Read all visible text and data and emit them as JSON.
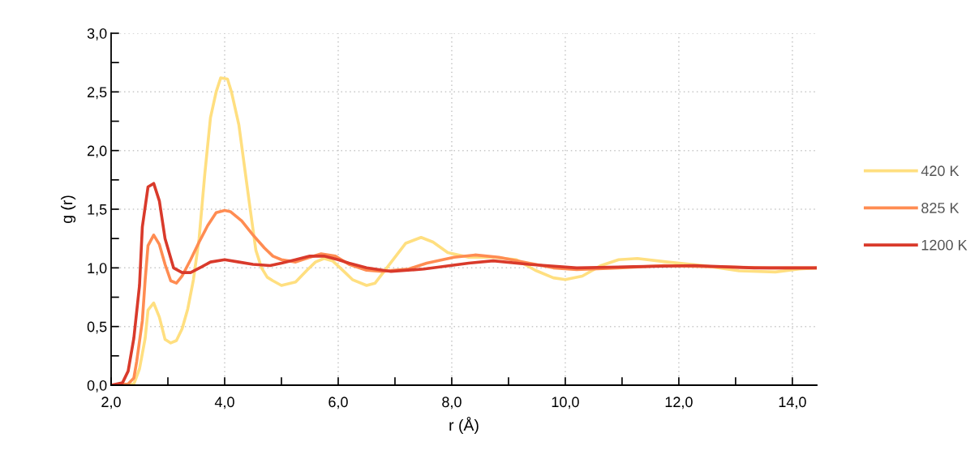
{
  "chart_data": {
    "type": "line",
    "xlabel": "r (Å)",
    "ylabel": "g (r)",
    "xlim": [
      2.0,
      14.43
    ],
    "ylim": [
      0,
      3.0
    ],
    "xticks": [
      {
        "value": 2,
        "label": "2,0"
      },
      {
        "value": 3,
        "label": null
      },
      {
        "value": 4,
        "label": "4,0"
      },
      {
        "value": 5,
        "label": null
      },
      {
        "value": 6,
        "label": "6,0"
      },
      {
        "value": 7,
        "label": null
      },
      {
        "value": 8,
        "label": "8,0"
      },
      {
        "value": 9,
        "label": null
      },
      {
        "value": 10,
        "label": "10,0"
      },
      {
        "value": 11,
        "label": null
      },
      {
        "value": 12,
        "label": "12,0"
      },
      {
        "value": 13,
        "label": null
      },
      {
        "value": 14,
        "label": "14,0"
      }
    ],
    "yticks": [
      {
        "value": 0,
        "label": "0,0"
      },
      {
        "value": 0.25,
        "label": null
      },
      {
        "value": 0.5,
        "label": "0,5"
      },
      {
        "value": 0.75,
        "label": null
      },
      {
        "value": 1.0,
        "label": "1,0"
      },
      {
        "value": 1.25,
        "label": null
      },
      {
        "value": 1.5,
        "label": "1,5"
      },
      {
        "value": 1.75,
        "label": null
      },
      {
        "value": 2.0,
        "label": "2,0"
      },
      {
        "value": 2.25,
        "label": null
      },
      {
        "value": 2.5,
        "label": "2,5"
      },
      {
        "value": 2.75,
        "label": null
      },
      {
        "value": 3.0,
        "label": "3,0"
      }
    ],
    "grid": true,
    "legend": "right",
    "marker": "none",
    "line_style": "solid",
    "series": [
      {
        "name": "420 K",
        "color": "#ffdf80",
        "x": [
          2.0,
          2.4,
          2.5,
          2.6,
          2.65,
          2.75,
          2.85,
          2.95,
          3.05,
          3.15,
          3.25,
          3.35,
          3.45,
          3.55,
          3.65,
          3.75,
          3.85,
          3.93,
          4.05,
          4.12,
          4.25,
          4.35,
          4.45,
          4.55,
          4.65,
          4.75,
          4.85,
          5.0,
          5.25,
          5.45,
          5.6,
          5.75,
          5.9,
          6.1,
          6.25,
          6.5,
          6.65,
          7.19,
          7.46,
          7.67,
          7.93,
          8.3,
          8.73,
          9.14,
          9.47,
          9.79,
          10.0,
          10.3,
          10.63,
          10.94,
          11.27,
          11.8,
          12.43,
          13.06,
          13.7,
          14.12,
          14.43
        ],
        "values": [
          0,
          0.01,
          0.14,
          0.4,
          0.64,
          0.7,
          0.58,
          0.39,
          0.36,
          0.38,
          0.48,
          0.65,
          0.9,
          1.25,
          1.8,
          2.28,
          2.5,
          2.62,
          2.61,
          2.5,
          2.22,
          1.86,
          1.5,
          1.15,
          1.0,
          0.92,
          0.89,
          0.85,
          0.88,
          0.98,
          1.05,
          1.08,
          1.06,
          0.97,
          0.9,
          0.85,
          0.87,
          1.21,
          1.26,
          1.22,
          1.13,
          1.09,
          1.09,
          1.07,
          0.98,
          0.915,
          0.9,
          0.93,
          1.02,
          1.07,
          1.08,
          1.05,
          1.02,
          0.975,
          0.965,
          0.99,
          1.0
        ]
      },
      {
        "name": "825 K",
        "color": "#ff8c52",
        "x": [
          2.0,
          2.3,
          2.4,
          2.45,
          2.55,
          2.6,
          2.65,
          2.75,
          2.85,
          2.95,
          3.05,
          3.15,
          3.25,
          3.4,
          3.55,
          3.7,
          3.85,
          4.0,
          4.1,
          4.3,
          4.5,
          4.7,
          4.85,
          5.0,
          5.25,
          5.5,
          5.7,
          5.95,
          6.19,
          6.5,
          6.77,
          7.24,
          7.56,
          8.04,
          8.41,
          8.83,
          9.36,
          9.79,
          10.2,
          10.94,
          11.74,
          12.53,
          13.59,
          14.43
        ],
        "values": [
          0,
          0.01,
          0.06,
          0.2,
          0.55,
          0.9,
          1.19,
          1.28,
          1.2,
          1.03,
          0.89,
          0.87,
          0.93,
          1.07,
          1.22,
          1.36,
          1.47,
          1.49,
          1.48,
          1.4,
          1.28,
          1.17,
          1.1,
          1.07,
          1.05,
          1.09,
          1.12,
          1.1,
          1.03,
          0.98,
          0.97,
          0.99,
          1.04,
          1.09,
          1.11,
          1.09,
          1.04,
          1.0,
          0.985,
          1.0,
          1.02,
          1.01,
          1.0,
          1.0
        ]
      },
      {
        "name": "1200 K",
        "color": "#d93a2b",
        "x": [
          2.0,
          2.2,
          2.3,
          2.4,
          2.5,
          2.55,
          2.65,
          2.75,
          2.85,
          2.95,
          3.1,
          3.25,
          3.4,
          3.6,
          3.75,
          4.0,
          4.25,
          4.5,
          4.8,
          5.0,
          5.25,
          5.5,
          5.75,
          6.0,
          6.19,
          6.5,
          6.93,
          7.51,
          8.3,
          8.73,
          9.36,
          10.2,
          11.21,
          12.27,
          13.33,
          14.43
        ],
        "values": [
          0,
          0.02,
          0.12,
          0.4,
          0.85,
          1.35,
          1.69,
          1.72,
          1.57,
          1.25,
          1.0,
          0.96,
          0.96,
          1.01,
          1.05,
          1.07,
          1.05,
          1.03,
          1.02,
          1.04,
          1.07,
          1.1,
          1.1,
          1.07,
          1.04,
          1.0,
          0.97,
          0.99,
          1.04,
          1.06,
          1.03,
          1.0,
          1.01,
          1.02,
          1.0,
          1.0
        ]
      }
    ]
  }
}
